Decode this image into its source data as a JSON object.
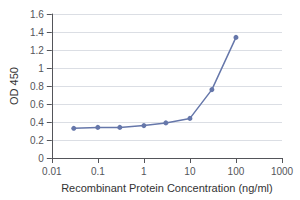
{
  "chart_data": {
    "type": "line",
    "x": [
      0.03,
      0.1,
      0.3,
      1.0,
      3.0,
      10.0,
      30.0,
      100.0
    ],
    "values": [
      0.33,
      0.34,
      0.34,
      0.36,
      0.39,
      0.44,
      0.76,
      1.34
    ],
    "color": "#6677aa",
    "marker": "circle",
    "xlabel": "Recombinant Protein Concentration (ng/ml)",
    "ylabel": "OD 450",
    "log": "x",
    "xlim": [
      0.01,
      1000
    ],
    "xticks": [
      0.01,
      0.1,
      1,
      10,
      100,
      1000
    ],
    "ylim": [
      0,
      1.6
    ],
    "yticks": [
      0,
      0.2,
      0.4,
      0.6,
      0.8,
      1,
      1.2,
      1.4,
      1.6
    ],
    "grid": "y"
  }
}
